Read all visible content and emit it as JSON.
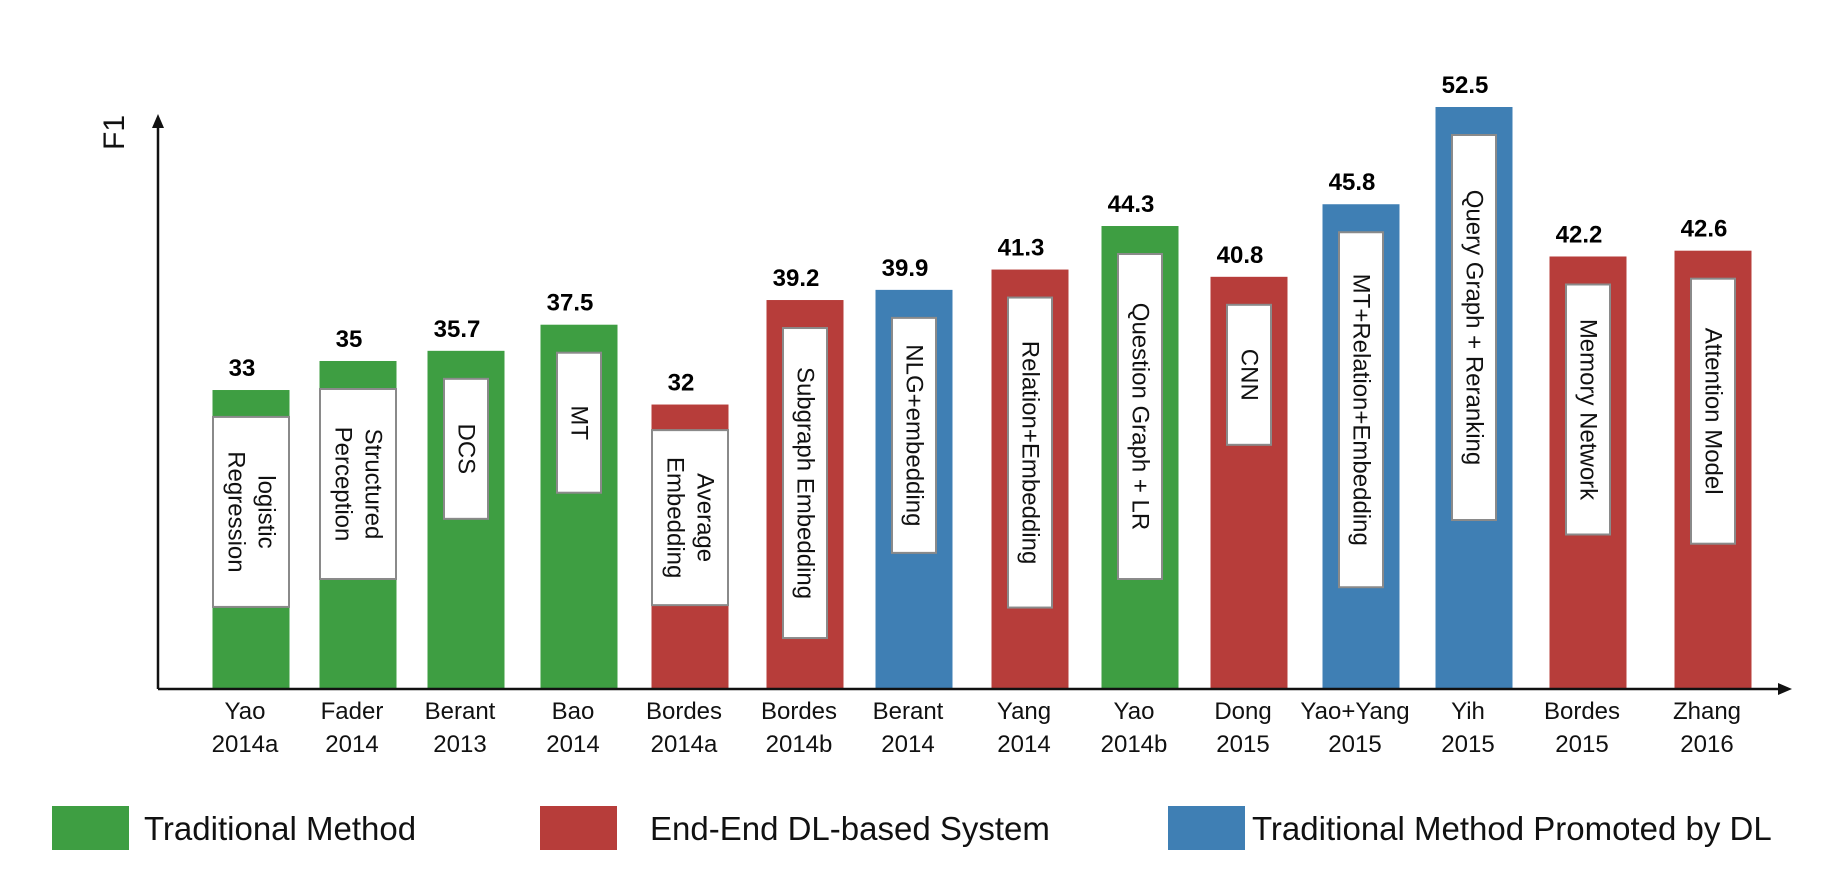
{
  "chart_data": {
    "type": "bar",
    "ylabel": "F1",
    "xlabel": "",
    "categories": [
      [
        "Yao",
        "2014a"
      ],
      [
        "Fader",
        "2014"
      ],
      [
        "Berant",
        "2013"
      ],
      [
        "Bao",
        "2014"
      ],
      [
        "Bordes",
        "2014a"
      ],
      [
        "Bordes",
        "2014b"
      ],
      [
        "Berant",
        "2014"
      ],
      [
        "Yang",
        "2014"
      ],
      [
        "Yao",
        "2014b"
      ],
      [
        "Dong",
        "2015"
      ],
      [
        "Yao+Yang",
        "2015"
      ],
      [
        "Yih",
        "2015"
      ],
      [
        "Bordes",
        "2015"
      ],
      [
        "Zhang",
        "2016"
      ]
    ],
    "values": [
      33,
      35,
      35.7,
      37.5,
      32,
      39.2,
      39.9,
      41.3,
      44.3,
      40.8,
      45.8,
      52.5,
      42.2,
      42.6
    ],
    "value_labels": [
      "33",
      "35",
      "35.7",
      "37.5",
      "32",
      "39.2",
      "39.9",
      "41.3",
      "44.3",
      "40.8",
      "45.8",
      "52.5",
      "42.2",
      "42.6"
    ],
    "methods": [
      [
        "logistic",
        "Regression"
      ],
      [
        "Structured",
        "Perception"
      ],
      [
        "DCS"
      ],
      [
        "MT"
      ],
      [
        "Average",
        "Embedding"
      ],
      [
        "Subgraph Embedding"
      ],
      [
        "NLG+embedding"
      ],
      [
        "Relation+Embedding"
      ],
      [
        "Question Graph + LR"
      ],
      [
        "CNN"
      ],
      [
        "MT+Relation+Embedding"
      ],
      [
        "Query Graph + Reranking"
      ],
      [
        "Memory Network"
      ],
      [
        "Attention Model"
      ]
    ],
    "groups": [
      "traditional",
      "traditional",
      "traditional",
      "traditional",
      "e2e",
      "e2e",
      "promoted",
      "e2e",
      "traditional",
      "e2e",
      "promoted",
      "promoted",
      "e2e",
      "e2e"
    ],
    "ylim": [
      12.4,
      52.5
    ],
    "grid": false,
    "legend": {
      "placement": "bottom",
      "entries": [
        {
          "key": "traditional",
          "label": "Traditional Method",
          "color": "#3e9e42"
        },
        {
          "key": "e2e",
          "label": "End-End DL-based System",
          "color": "#b73d3a"
        },
        {
          "key": "promoted",
          "label": "Traditional Method Promoted by DL",
          "color": "#3f7fb4"
        }
      ]
    }
  }
}
